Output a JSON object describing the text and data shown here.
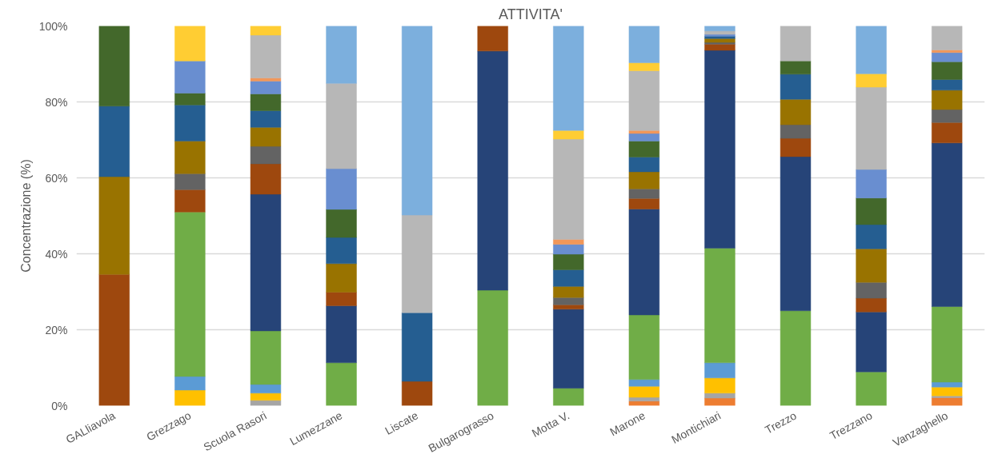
{
  "chart_data": {
    "type": "bar",
    "stacked": true,
    "title": "ATTIVITA'",
    "ylabel": "Concentrazione (%)",
    "categories": [
      "GALliavola",
      "Grezzago",
      "Scuola Rasori",
      "Lumezzane",
      "Liscate",
      "Bulgarograsso",
      "Motta V.",
      "Marone",
      "Montichiari",
      "Trezzo",
      "Trezzano",
      "Vanzaghello"
    ],
    "ylim": [
      0,
      100
    ],
    "yticks": [
      {
        "value": 0,
        "label": "0%"
      },
      {
        "value": 20,
        "label": "20%"
      },
      {
        "value": 40,
        "label": "40%"
      },
      {
        "value": 60,
        "label": "60%"
      },
      {
        "value": 80,
        "label": "80%"
      },
      {
        "value": 100,
        "label": "100%"
      }
    ],
    "grid": "y",
    "series": [
      {
        "color": "#ed7d31",
        "values": [
          null,
          null,
          null,
          null,
          null,
          null,
          null,
          1.2,
          2.0,
          null,
          null,
          2.1
        ]
      },
      {
        "color": "#a5a5a5",
        "values": [
          null,
          null,
          1.4,
          null,
          null,
          null,
          null,
          1.0,
          1.3,
          null,
          null,
          0.5
        ]
      },
      {
        "color": "#ffc000",
        "values": [
          null,
          4.1,
          1.9,
          null,
          null,
          null,
          null,
          2.9,
          4.0,
          null,
          null,
          2.3
        ]
      },
      {
        "color": "#5b9bd5",
        "values": [
          null,
          3.6,
          2.3,
          null,
          null,
          null,
          null,
          1.8,
          4.0,
          null,
          null,
          1.3
        ]
      },
      {
        "color": "#70ad47",
        "values": [
          null,
          43.3,
          14.1,
          11.3,
          null,
          30.4,
          4.6,
          17.0,
          30.2,
          25.0,
          8.9,
          19.9
        ]
      },
      {
        "color": "#264478",
        "values": [
          null,
          null,
          36.0,
          15.0,
          null,
          63.0,
          20.8,
          27.9,
          52.1,
          40.6,
          15.8,
          43.1
        ]
      },
      {
        "color": "#9e480e",
        "values": [
          34.6,
          5.9,
          8.0,
          3.6,
          6.4,
          6.6,
          1.2,
          2.8,
          1.6,
          4.8,
          3.6,
          5.4
        ]
      },
      {
        "color": "#636363",
        "values": [
          null,
          4.2,
          4.6,
          null,
          null,
          null,
          1.9,
          2.5,
          0.5,
          3.6,
          4.2,
          3.4
        ]
      },
      {
        "color": "#997300",
        "values": [
          25.7,
          8.6,
          5.0,
          7.5,
          null,
          null,
          2.9,
          4.5,
          1.0,
          6.7,
          8.8,
          5.1
        ]
      },
      {
        "color": "#255e91",
        "values": [
          18.6,
          9.5,
          4.4,
          6.9,
          18.1,
          null,
          4.4,
          3.9,
          0.6,
          6.6,
          6.4,
          2.8
        ]
      },
      {
        "color": "#43682b",
        "values": [
          21.1,
          3.1,
          4.4,
          7.4,
          null,
          null,
          4.1,
          4.2,
          null,
          3.5,
          7.0,
          4.7
        ]
      },
      {
        "color": "#698ed0",
        "values": [
          null,
          8.5,
          3.4,
          10.7,
          null,
          null,
          2.6,
          2.0,
          0.5,
          null,
          7.5,
          2.4
        ]
      },
      {
        "color": "#f1975a",
        "values": [
          null,
          null,
          0.8,
          null,
          null,
          null,
          1.3,
          0.8,
          null,
          null,
          null,
          0.7
        ]
      },
      {
        "color": "#b7b7b7",
        "values": [
          null,
          null,
          11.3,
          22.5,
          25.7,
          null,
          26.4,
          15.7,
          0.9,
          9.2,
          21.7,
          6.3
        ]
      },
      {
        "color": "#ffcd33",
        "values": [
          null,
          9.2,
          2.4,
          null,
          null,
          null,
          2.3,
          2.1,
          null,
          null,
          3.5,
          null
        ]
      },
      {
        "color": "#7cafdd",
        "values": [
          null,
          null,
          null,
          15.1,
          49.8,
          null,
          27.5,
          9.7,
          1.3,
          null,
          12.6,
          null
        ]
      }
    ]
  }
}
